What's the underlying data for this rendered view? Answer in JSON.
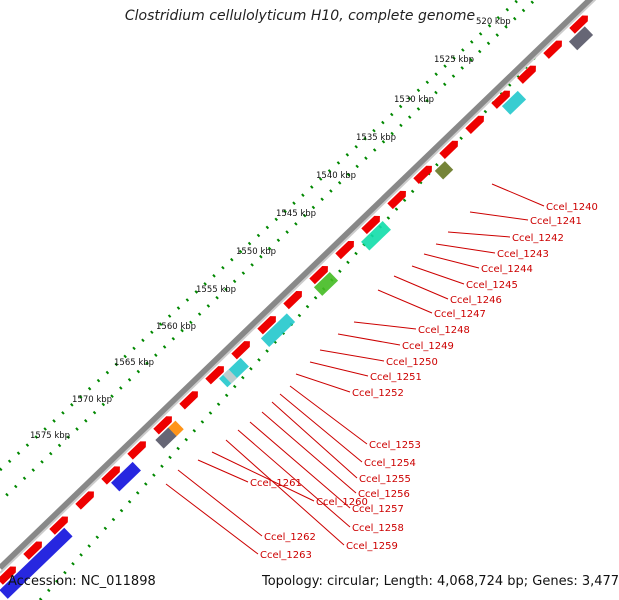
{
  "title": "Clostridium cellulolyticum H10, complete genome",
  "ticks": [
    "520 kbp",
    "1525 kbp",
    "1530 kbp",
    "1535 kbp",
    "1540 kbp",
    "1545 kbp",
    "1550 kbp",
    "1555 kbp",
    "1560 kbp",
    "1565 kbp",
    "1570 kbp",
    "1575 kbp"
  ],
  "genes": [
    "Ccel_1240",
    "Ccel_1241",
    "Ccel_1242",
    "Ccel_1243",
    "Ccel_1244",
    "Ccel_1245",
    "Ccel_1246",
    "Ccel_1247",
    "Ccel_1248",
    "Ccel_1249",
    "Ccel_1250",
    "Ccel_1251",
    "Ccel_1252",
    "Ccel_1253",
    "Ccel_1254",
    "Ccel_1255",
    "Ccel_1256",
    "Ccel_1257",
    "Ccel_1258",
    "Ccel_1259",
    "Ccel_1260",
    "Ccel_1261",
    "Ccel_1262",
    "Ccel_1263"
  ],
  "footer": {
    "accession": "Accession: NC_011898",
    "summary": "Topology: circular; Length: 4,068,724 bp; Genes: 3,477"
  },
  "colors": {
    "forward_gene": "#ee0000",
    "backbone": "#888888",
    "tick": "#008800",
    "label": "#cc0000",
    "blue_block": "#1010dd",
    "cyan_block": "#22c8cc",
    "green_block": "#44bb22",
    "olive_block": "#667722",
    "teal_block": "#11ddaa",
    "dark_block": "#555566"
  }
}
